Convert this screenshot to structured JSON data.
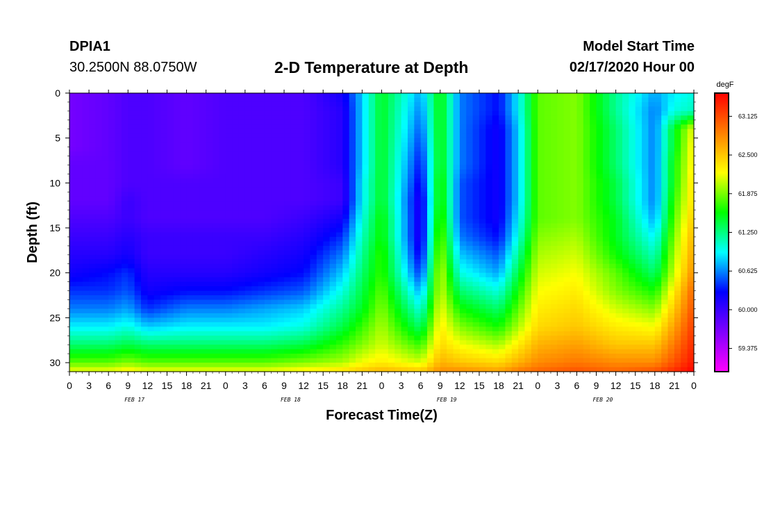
{
  "header": {
    "station_id": "DPIA1",
    "coordinates": "30.2500N 88.0750W",
    "title": "2-D Temperature at Depth",
    "start_label": "Model Start Time",
    "start_value": "02/17/2020 Hour 00"
  },
  "chart_data": {
    "type": "heatmap",
    "title": "2-D Temperature at Depth",
    "xlabel": "Forecast Time(Z)",
    "ylabel": "Depth (ft)",
    "x_range_hours": [
      0,
      96
    ],
    "x_tick_step_hours": 3,
    "x_tick_labels": [
      "0",
      "3",
      "6",
      "9",
      "12",
      "15",
      "18",
      "21",
      "0",
      "3",
      "6",
      "9",
      "12",
      "15",
      "18",
      "21",
      "0",
      "3",
      "6",
      "9",
      "12",
      "15",
      "18",
      "21",
      "0",
      "3",
      "6",
      "9",
      "12",
      "15",
      "18",
      "21",
      "0"
    ],
    "date_labels": [
      {
        "label": "FEB 17",
        "hour": 10
      },
      {
        "label": "FEB 18",
        "hour": 34
      },
      {
        "label": "FEB 19",
        "hour": 58
      },
      {
        "label": "FEB 20",
        "hour": 82
      }
    ],
    "y_range_ft": [
      0,
      31
    ],
    "y_ticks": [
      0,
      5,
      10,
      15,
      20,
      25,
      30
    ],
    "y_tick_labels": [
      "0",
      "5",
      "10",
      "15",
      "20",
      "25",
      "30"
    ],
    "colorbar": {
      "unit": "degF",
      "range": [
        59.0,
        63.5
      ],
      "tick_values": [
        59.375,
        60.0,
        60.625,
        61.25,
        61.875,
        62.5,
        63.125
      ],
      "tick_labels": [
        "59.375",
        "60.000",
        "60.625",
        "61.250",
        "61.875",
        "62.500",
        "63.125"
      ]
    },
    "colorscale": [
      "#ff00ff",
      "#8000ff",
      "#0000ff",
      "#00ffff",
      "#00ff00",
      "#ffff00",
      "#ff8000",
      "#ff0000"
    ],
    "depth_levels_ft": [
      0,
      2,
      4,
      6,
      8,
      10,
      12,
      14,
      16,
      18,
      20,
      22,
      24,
      26,
      28,
      30,
      31
    ],
    "time_columns_hours": [
      0,
      6,
      9,
      12,
      18,
      24,
      30,
      36,
      42,
      45,
      48,
      54,
      57,
      60,
      66,
      69,
      72,
      78,
      84,
      90,
      93,
      96
    ],
    "temperature_grid_degF": [
      [
        59.7,
        59.8,
        59.9,
        59.9,
        59.8,
        59.9,
        59.9,
        59.9,
        60.2,
        60.8,
        61.5,
        60.7,
        61.6,
        60.6,
        60.3,
        60.9,
        61.8,
        61.9,
        61.2,
        60.7,
        60.9,
        61.0
      ],
      [
        59.7,
        59.8,
        59.9,
        59.9,
        59.8,
        59.9,
        59.9,
        59.9,
        60.1,
        60.8,
        61.5,
        60.6,
        61.6,
        60.6,
        60.3,
        60.9,
        61.8,
        61.9,
        61.2,
        60.6,
        61.0,
        61.1
      ],
      [
        59.7,
        59.8,
        59.9,
        59.9,
        59.8,
        59.9,
        59.9,
        59.9,
        60.1,
        60.8,
        61.5,
        60.5,
        61.6,
        60.6,
        60.2,
        60.8,
        61.8,
        61.9,
        61.3,
        60.6,
        61.5,
        62.2
      ],
      [
        59.7,
        59.8,
        59.9,
        59.9,
        59.8,
        59.9,
        59.9,
        59.9,
        60.1,
        60.8,
        61.5,
        60.4,
        61.6,
        60.6,
        60.2,
        60.8,
        61.8,
        61.9,
        61.3,
        60.6,
        61.5,
        62.3
      ],
      [
        59.8,
        59.8,
        59.9,
        59.9,
        59.8,
        59.9,
        59.9,
        59.9,
        60.1,
        60.8,
        61.5,
        60.3,
        61.6,
        60.6,
        60.2,
        60.8,
        61.8,
        61.9,
        61.3,
        60.6,
        61.6,
        62.3
      ],
      [
        59.8,
        59.8,
        59.9,
        59.9,
        59.9,
        59.9,
        59.9,
        59.9,
        60.0,
        60.9,
        61.5,
        60.2,
        61.7,
        60.5,
        60.2,
        60.8,
        61.8,
        61.9,
        61.4,
        60.6,
        61.6,
        62.4
      ],
      [
        59.8,
        59.8,
        60.0,
        59.9,
        59.9,
        59.9,
        59.9,
        59.9,
        60.0,
        60.9,
        61.5,
        60.1,
        61.7,
        60.5,
        60.2,
        60.8,
        61.8,
        61.9,
        61.4,
        60.6,
        61.7,
        62.4
      ],
      [
        59.9,
        59.9,
        60.0,
        59.9,
        59.9,
        59.9,
        59.9,
        60.0,
        60.2,
        61.0,
        61.6,
        60.1,
        61.8,
        60.5,
        60.2,
        60.9,
        61.8,
        61.9,
        61.5,
        60.7,
        61.8,
        62.5
      ],
      [
        60.0,
        60.0,
        60.1,
        60.0,
        60.0,
        60.0,
        60.0,
        60.1,
        60.4,
        61.1,
        61.6,
        60.1,
        61.9,
        60.6,
        60.3,
        61.0,
        61.9,
        62.0,
        61.5,
        60.9,
        61.9,
        62.6
      ],
      [
        60.1,
        60.1,
        60.2,
        60.0,
        60.0,
        60.0,
        60.1,
        60.2,
        60.6,
        61.2,
        61.7,
        60.2,
        62.0,
        60.8,
        60.5,
        61.2,
        62.0,
        62.1,
        61.6,
        61.1,
        62.0,
        62.7
      ],
      [
        60.2,
        60.3,
        60.4,
        60.1,
        60.1,
        60.1,
        60.2,
        60.3,
        60.8,
        61.3,
        61.7,
        60.4,
        62.1,
        61.0,
        60.7,
        61.4,
        62.1,
        62.2,
        61.8,
        61.3,
        62.1,
        62.8
      ],
      [
        60.4,
        60.4,
        60.5,
        60.2,
        60.3,
        60.3,
        60.4,
        60.5,
        61.0,
        61.4,
        61.8,
        60.7,
        62.1,
        61.3,
        61.0,
        61.6,
        62.2,
        62.3,
        61.9,
        61.6,
        62.3,
        63.0
      ],
      [
        60.6,
        60.6,
        60.7,
        60.4,
        60.6,
        60.6,
        60.7,
        60.8,
        61.2,
        61.5,
        61.9,
        61.0,
        62.2,
        61.6,
        61.3,
        61.8,
        62.3,
        62.4,
        62.1,
        61.9,
        62.5,
        63.1
      ],
      [
        60.9,
        60.9,
        61.0,
        60.8,
        60.9,
        60.9,
        60.9,
        61.0,
        61.4,
        61.7,
        62.0,
        61.3,
        62.3,
        61.9,
        61.6,
        62.0,
        62.4,
        62.5,
        62.3,
        62.2,
        62.7,
        63.2
      ],
      [
        61.3,
        61.3,
        61.4,
        61.3,
        61.3,
        61.3,
        61.3,
        61.4,
        61.7,
        61.9,
        62.1,
        61.7,
        62.4,
        62.2,
        62.0,
        62.3,
        62.6,
        62.7,
        62.5,
        62.5,
        62.9,
        63.3
      ],
      [
        61.8,
        61.8,
        61.9,
        61.8,
        61.8,
        61.8,
        61.8,
        61.9,
        62.0,
        62.2,
        62.3,
        62.1,
        62.6,
        62.5,
        62.4,
        62.6,
        62.8,
        62.9,
        62.8,
        62.8,
        63.1,
        63.4
      ],
      [
        62.2,
        62.2,
        62.3,
        62.2,
        62.2,
        62.2,
        62.2,
        62.3,
        62.4,
        62.5,
        62.6,
        62.5,
        62.8,
        62.8,
        62.7,
        62.9,
        63.0,
        63.1,
        63.0,
        63.1,
        63.3,
        63.5
      ]
    ]
  }
}
